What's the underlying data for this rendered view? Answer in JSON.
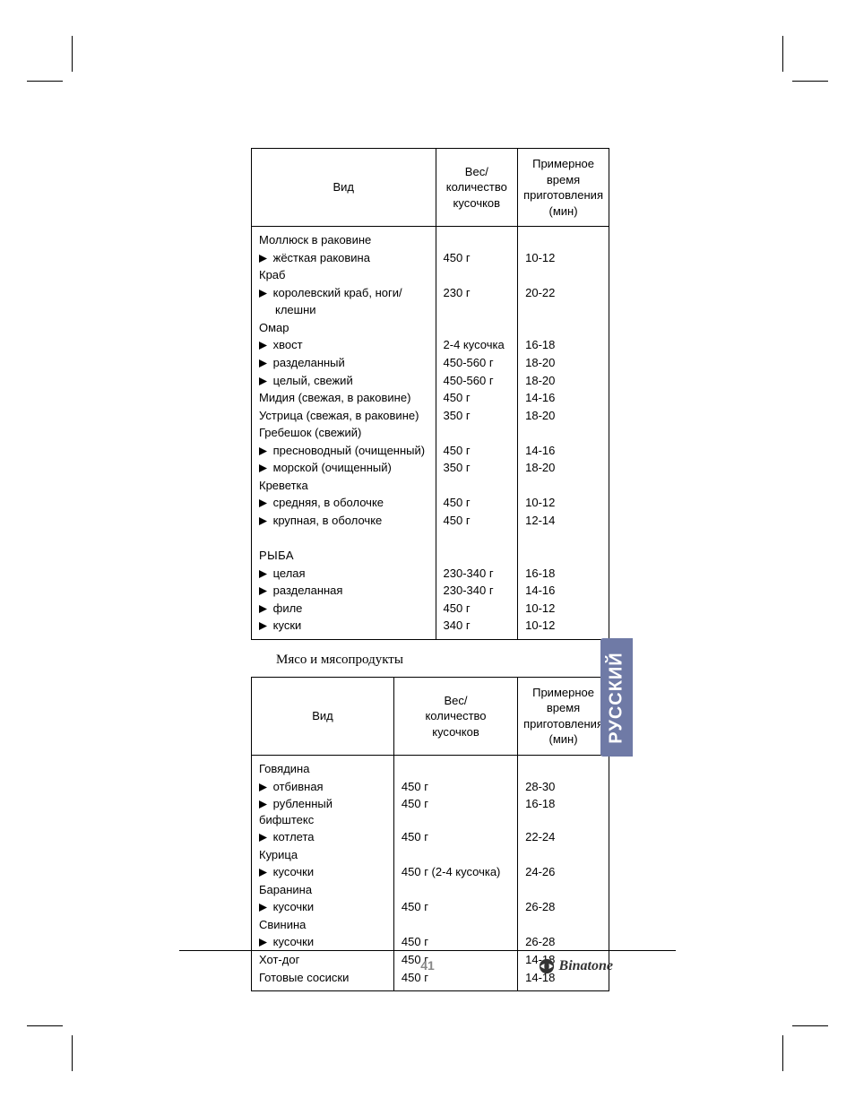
{
  "colors": {
    "tab_bg": "#6f7aa6",
    "tab_text": "#ffffff",
    "page_num": "#888888",
    "border": "#000000",
    "text": "#000000"
  },
  "typography": {
    "body_font": "Arial, Helvetica, sans-serif",
    "serif_font": "Georgia, Times New Roman, serif",
    "table_fontsize": 13,
    "heading_fontsize": 15,
    "tab_fontsize": 20
  },
  "headers": {
    "col1": "Вид",
    "col2_line1": "Вес/",
    "col2_line2": "количество",
    "col2_line3": "кусочков",
    "col3_line1": "Примерное",
    "col3_line2": "время",
    "col3_line3": "приготовления",
    "col3_line4": "(мин)"
  },
  "table1": {
    "rows": [
      {
        "type": "head",
        "label": "Моллюск в раковине",
        "w": "",
        "t": ""
      },
      {
        "type": "sub",
        "label": "жёсткая раковина",
        "w": "450 г",
        "t": "10-12"
      },
      {
        "type": "head",
        "label": "Краб",
        "w": "",
        "t": ""
      },
      {
        "type": "sub",
        "label": "королевский краб, ноги/",
        "w": "230 г",
        "t": "20-22"
      },
      {
        "type": "cont",
        "label": "клешни",
        "w": "",
        "t": ""
      },
      {
        "type": "head",
        "label": "Омар",
        "w": "",
        "t": ""
      },
      {
        "type": "sub",
        "label": "хвост",
        "w": "2-4 кусочка",
        "t": "16-18"
      },
      {
        "type": "sub",
        "label": "разделанный",
        "w": "450-560 г",
        "t": "18-20"
      },
      {
        "type": "sub",
        "label": "целый, свежий",
        "w": "450-560 г",
        "t": "18-20"
      },
      {
        "type": "head",
        "label": "Мидия (свежая, в раковине)",
        "w": "450 г",
        "t": "14-16"
      },
      {
        "type": "head",
        "label": "Устрица (свежая, в раковине)",
        "w": "350 г",
        "t": "18-20"
      },
      {
        "type": "head",
        "label": "Гребешок (свежий)",
        "w": "",
        "t": ""
      },
      {
        "type": "sub",
        "label": "пресноводный (очищенный)",
        "w": "450 г",
        "t": "14-16"
      },
      {
        "type": "sub",
        "label": "морской (очищенный)",
        "w": "350 г",
        "t": "18-20"
      },
      {
        "type": "head",
        "label": "Креветка",
        "w": "",
        "t": ""
      },
      {
        "type": "sub",
        "label": "средняя, в оболочке",
        "w": "450 г",
        "t": "10-12"
      },
      {
        "type": "sub",
        "label": "крупная, в оболочке",
        "w": "450 г",
        "t": "12-14"
      },
      {
        "type": "blank",
        "label": "",
        "w": "",
        "t": ""
      },
      {
        "type": "section",
        "label": "РЫБА",
        "w": "",
        "t": ""
      },
      {
        "type": "sub",
        "label": "целая",
        "w": "230-340 г",
        "t": "16-18"
      },
      {
        "type": "sub",
        "label": "разделанная",
        "w": "230-340 г",
        "t": "14-16"
      },
      {
        "type": "sub",
        "label": "филе",
        "w": "450 г",
        "t": "10-12"
      },
      {
        "type": "sub",
        "label": "куски",
        "w": "340 г",
        "t": "10-12"
      }
    ]
  },
  "section_heading": "Мясо и мясопродукты",
  "table2": {
    "rows": [
      {
        "type": "head",
        "label": "Говядина",
        "w": "",
        "t": ""
      },
      {
        "type": "sub",
        "label": "отбивная",
        "w": "450 г",
        "t": "28-30"
      },
      {
        "type": "sub",
        "label": "рубленный бифштекс",
        "w": "450 г",
        "t": "16-18"
      },
      {
        "type": "sub",
        "label": "котлета",
        "w": "450 г",
        "t": "22-24"
      },
      {
        "type": "head",
        "label": "Курица",
        "w": "",
        "t": ""
      },
      {
        "type": "sub",
        "label": "кусочки",
        "w": "450 г (2-4 кусочка)",
        "t": "24-26"
      },
      {
        "type": "head",
        "label": "Баранина",
        "w": "",
        "t": ""
      },
      {
        "type": "sub",
        "label": "кусочки",
        "w": "450 г",
        "t": "26-28"
      },
      {
        "type": "head",
        "label": "Свинина",
        "w": "",
        "t": ""
      },
      {
        "type": "sub",
        "label": "кусочки",
        "w": "450 г",
        "t": "26-28"
      },
      {
        "type": "head",
        "label": "Хот-дог",
        "w": "450 г",
        "t": "14-18"
      },
      {
        "type": "head",
        "label": "Готовые сосиски",
        "w": "450 г",
        "t": "14-18"
      }
    ]
  },
  "side_tab": "РУССКИЙ",
  "page_number": "41",
  "brand": "Binatone"
}
